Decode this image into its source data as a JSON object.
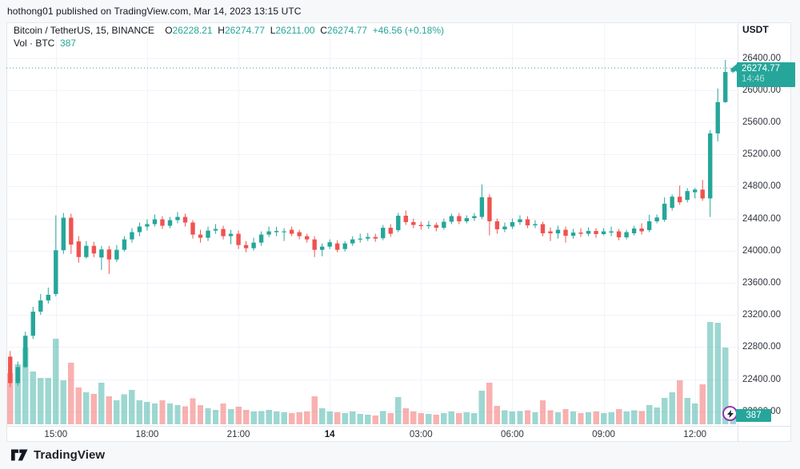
{
  "attribution": {
    "text": "hothong01 published on TradingView.com, Mar 14, 2023 13:15 UTC"
  },
  "header": {
    "symbol": "Bitcoin / TetherUS, 15, BINANCE",
    "ohlc": [
      {
        "label": "O",
        "value": "26228.21"
      },
      {
        "label": "H",
        "value": "26274.77"
      },
      {
        "label": "L",
        "value": "26211.00"
      },
      {
        "label": "C",
        "value": "26274.77"
      }
    ],
    "change": "+46.56 (+0.18%)",
    "volume_label": "Vol · BTC",
    "volume_value": "387"
  },
  "axes": {
    "currency": "USDT",
    "price_ticks": [
      {
        "value": 26400,
        "label": "26400.00"
      },
      {
        "value": 26000,
        "label": "26000.00"
      },
      {
        "value": 25600,
        "label": "25600.00"
      },
      {
        "value": 25200,
        "label": "25200.00"
      },
      {
        "value": 24800,
        "label": "24800.00"
      },
      {
        "value": 24400,
        "label": "24400.00"
      },
      {
        "value": 24000,
        "label": "24000.00"
      },
      {
        "value": 23600,
        "label": "23600.00"
      },
      {
        "value": 23200,
        "label": "23200.00"
      },
      {
        "value": 22800,
        "label": "22800.00"
      },
      {
        "value": 22400,
        "label": "22400.00"
      },
      {
        "value": 22000,
        "label": "22000.00"
      }
    ],
    "time_ticks": [
      {
        "index": 6,
        "label": "15:00",
        "bold": false
      },
      {
        "index": 18,
        "label": "18:00",
        "bold": false
      },
      {
        "index": 30,
        "label": "21:00",
        "bold": false
      },
      {
        "index": 42,
        "label": "14",
        "bold": true
      },
      {
        "index": 54,
        "label": "03:00",
        "bold": false
      },
      {
        "index": 66,
        "label": "06:00",
        "bold": false
      },
      {
        "index": 78,
        "label": "09:00",
        "bold": false
      },
      {
        "index": 90,
        "label": "12:00",
        "bold": false
      }
    ]
  },
  "last_price": {
    "value": "26274.77",
    "countdown": "14:46"
  },
  "volume_badge": {
    "value": "387"
  },
  "footer": {
    "brand": "TradingView"
  },
  "colors": {
    "up": "#26a69a",
    "down": "#ef5350",
    "vol_up": "rgba(38,166,154,0.45)",
    "vol_down": "rgba(239,83,80,0.45)",
    "grid": "#f0f3fa",
    "axis_border": "#e0e3eb",
    "last_price_line": "#26a69a",
    "marker_ring": "#9336b5"
  },
  "chart_data": {
    "type": "candlestick+volume",
    "title": "Bitcoin / TetherUS",
    "interval": "15",
    "exchange": "BINANCE",
    "quote_currency": "USDT",
    "session_start": "Mar 13 2023 13:30 UTC",
    "session_end": "Mar 14 2023 13:15 UTC",
    "y_range": [
      22000,
      26400
    ],
    "grid": true,
    "last_close": 26274.77,
    "last_volume_btc": 387,
    "columns": [
      "time",
      "open",
      "high",
      "low",
      "close",
      "volume_btc"
    ],
    "candles": [
      [
        "13:30",
        22680,
        22750,
        22300,
        22350,
        1380
      ],
      [
        "13:45",
        22350,
        22620,
        22320,
        22550,
        1610
      ],
      [
        "14:00",
        22550,
        22990,
        22540,
        22940,
        2060
      ],
      [
        "14:15",
        22940,
        23300,
        22900,
        23240,
        1420
      ],
      [
        "14:30",
        23240,
        23460,
        23200,
        23380,
        1250
      ],
      [
        "14:45",
        23380,
        23540,
        23340,
        23450,
        1250
      ],
      [
        "15:00",
        23460,
        24440,
        23430,
        24005,
        2300
      ],
      [
        "15:15",
        24005,
        24470,
        23960,
        24410,
        1180
      ],
      [
        "15:30",
        24410,
        24460,
        23960,
        24075,
        1660
      ],
      [
        "15:45",
        24115,
        24180,
        23850,
        23920,
        990
      ],
      [
        "16:00",
        23920,
        24120,
        23900,
        24060,
        860
      ],
      [
        "16:15",
        24060,
        24110,
        23920,
        23965,
        820
      ],
      [
        "16:30",
        23915,
        24060,
        23760,
        24015,
        1120
      ],
      [
        "16:45",
        24015,
        24060,
        23710,
        23890,
        750
      ],
      [
        "17:00",
        23890,
        24070,
        23860,
        24010,
        645
      ],
      [
        "17:15",
        24010,
        24180,
        23990,
        24140,
        810
      ],
      [
        "17:30",
        24140,
        24280,
        24100,
        24230,
        920
      ],
      [
        "17:45",
        24230,
        24350,
        24180,
        24300,
        650
      ],
      [
        "18:00",
        24300,
        24390,
        24250,
        24330,
        600
      ],
      [
        "18:15",
        24330,
        24450,
        24300,
        24390,
        560
      ],
      [
        "18:30",
        24390,
        24430,
        24270,
        24310,
        640
      ],
      [
        "18:45",
        24310,
        24420,
        24280,
        24380,
        560
      ],
      [
        "19:00",
        24380,
        24480,
        24340,
        24420,
        520
      ],
      [
        "19:15",
        24420,
        24460,
        24300,
        24350,
        480
      ],
      [
        "19:30",
        24350,
        24380,
        24150,
        24200,
        700
      ],
      [
        "19:45",
        24200,
        24260,
        24100,
        24160,
        520
      ],
      [
        "20:00",
        24160,
        24300,
        24120,
        24250,
        430
      ],
      [
        "20:15",
        24250,
        24330,
        24210,
        24270,
        390
      ],
      [
        "20:30",
        24270,
        24310,
        24140,
        24180,
        560
      ],
      [
        "20:45",
        24180,
        24260,
        24080,
        24210,
        410
      ],
      [
        "21:00",
        24210,
        24250,
        24020,
        24070,
        470
      ],
      [
        "21:15",
        24070,
        24120,
        23980,
        24030,
        390
      ],
      [
        "21:30",
        24030,
        24160,
        24000,
        24100,
        340
      ],
      [
        "21:45",
        24100,
        24240,
        24060,
        24200,
        360
      ],
      [
        "22:00",
        24200,
        24300,
        24170,
        24240,
        390
      ],
      [
        "22:15",
        24230,
        24300,
        24180,
        24245,
        340
      ],
      [
        "22:30",
        24230,
        24280,
        24120,
        24240,
        320
      ],
      [
        "22:45",
        24260,
        24300,
        24180,
        24210,
        300
      ],
      [
        "23:00",
        24230,
        24260,
        24140,
        24180,
        320
      ],
      [
        "23:15",
        24180,
        24210,
        24100,
        24140,
        340
      ],
      [
        "23:30",
        24140,
        24180,
        23920,
        24010,
        750
      ],
      [
        "23:45",
        24010,
        24090,
        23930,
        24050,
        430
      ],
      [
        "00:00",
        24050,
        24140,
        24020,
        24105,
        340
      ],
      [
        "00:15",
        24090,
        24130,
        23980,
        24010,
        320
      ],
      [
        "00:30",
        24020,
        24120,
        23990,
        24090,
        300
      ],
      [
        "00:45",
        24090,
        24180,
        24060,
        24140,
        340
      ],
      [
        "01:00",
        24140,
        24210,
        24100,
        24150,
        280
      ],
      [
        "01:15",
        24150,
        24220,
        24120,
        24170,
        260
      ],
      [
        "01:30",
        24170,
        24210,
        24110,
        24150,
        240
      ],
      [
        "01:45",
        24155,
        24320,
        24130,
        24285,
        360
      ],
      [
        "02:00",
        24285,
        24330,
        24170,
        24210,
        300
      ],
      [
        "02:15",
        24255,
        24470,
        24230,
        24435,
        730
      ],
      [
        "02:30",
        24435,
        24500,
        24320,
        24355,
        430
      ],
      [
        "02:45",
        24355,
        24400,
        24280,
        24320,
        340
      ],
      [
        "03:00",
        24320,
        24360,
        24260,
        24305,
        300
      ],
      [
        "03:15",
        24305,
        24370,
        24270,
        24320,
        280
      ],
      [
        "03:30",
        24320,
        24350,
        24240,
        24285,
        260
      ],
      [
        "03:45",
        24285,
        24400,
        24260,
        24360,
        300
      ],
      [
        "04:00",
        24360,
        24460,
        24330,
        24430,
        340
      ],
      [
        "04:15",
        24430,
        24470,
        24330,
        24365,
        300
      ],
      [
        "04:30",
        24365,
        24440,
        24340,
        24405,
        320
      ],
      [
        "04:45",
        24405,
        24470,
        24370,
        24430,
        300
      ],
      [
        "05:00",
        24420,
        24825,
        24395,
        24665,
        900
      ],
      [
        "05:15",
        24665,
        24700,
        24190,
        24366,
        1120
      ],
      [
        "05:30",
        24366,
        24400,
        24210,
        24266,
        490
      ],
      [
        "05:45",
        24266,
        24350,
        24230,
        24300,
        380
      ],
      [
        "06:00",
        24300,
        24400,
        24270,
        24355,
        340
      ],
      [
        "06:15",
        24355,
        24440,
        24320,
        24390,
        360
      ],
      [
        "06:30",
        24390,
        24430,
        24280,
        24315,
        380
      ],
      [
        "06:45",
        24315,
        24380,
        24280,
        24330,
        320
      ],
      [
        "07:00",
        24330,
        24360,
        24180,
        24216,
        640
      ],
      [
        "07:15",
        24240,
        24290,
        24120,
        24215,
        380
      ],
      [
        "07:30",
        24215,
        24310,
        24150,
        24260,
        320
      ],
      [
        "07:45",
        24260,
        24300,
        24100,
        24185,
        410
      ],
      [
        "08:00",
        24185,
        24270,
        24150,
        24225,
        340
      ],
      [
        "08:15",
        24225,
        24280,
        24170,
        24210,
        300
      ],
      [
        "08:30",
        24210,
        24290,
        24180,
        24245,
        320
      ],
      [
        "08:45",
        24245,
        24280,
        24160,
        24206,
        340
      ],
      [
        "09:00",
        24206,
        24280,
        24190,
        24240,
        300
      ],
      [
        "09:15",
        24225,
        24300,
        24180,
        24240,
        320
      ],
      [
        "09:30",
        24240,
        24270,
        24130,
        24166,
        410
      ],
      [
        "09:45",
        24166,
        24260,
        24140,
        24230,
        340
      ],
      [
        "10:00",
        24216,
        24310,
        24190,
        24276,
        380
      ],
      [
        "10:15",
        24276,
        24340,
        24200,
        24240,
        360
      ],
      [
        "10:30",
        24256,
        24445,
        24230,
        24365,
        520
      ],
      [
        "10:45",
        24365,
        24450,
        24340,
        24413,
        450
      ],
      [
        "11:00",
        24385,
        24663,
        24360,
        24584,
        710
      ],
      [
        "11:15",
        24533,
        24700,
        24500,
        24672,
        860
      ],
      [
        "11:30",
        24672,
        24811,
        24570,
        24602,
        1180
      ],
      [
        "11:45",
        24632,
        24780,
        24600,
        24742,
        710
      ],
      [
        "12:00",
        24727,
        24781,
        24650,
        24760,
        560
      ],
      [
        "12:15",
        24760,
        24881,
        24620,
        24650,
        1080
      ],
      [
        "12:30",
        24650,
        25500,
        24420,
        25460,
        2750
      ],
      [
        "12:45",
        25460,
        26020,
        25360,
        25850,
        2730
      ],
      [
        "13:00",
        25850,
        26375,
        25840,
        26225,
        2060
      ],
      [
        "13:15",
        26228.21,
        26274.77,
        26211.0,
        26274.77,
        387
      ]
    ]
  }
}
